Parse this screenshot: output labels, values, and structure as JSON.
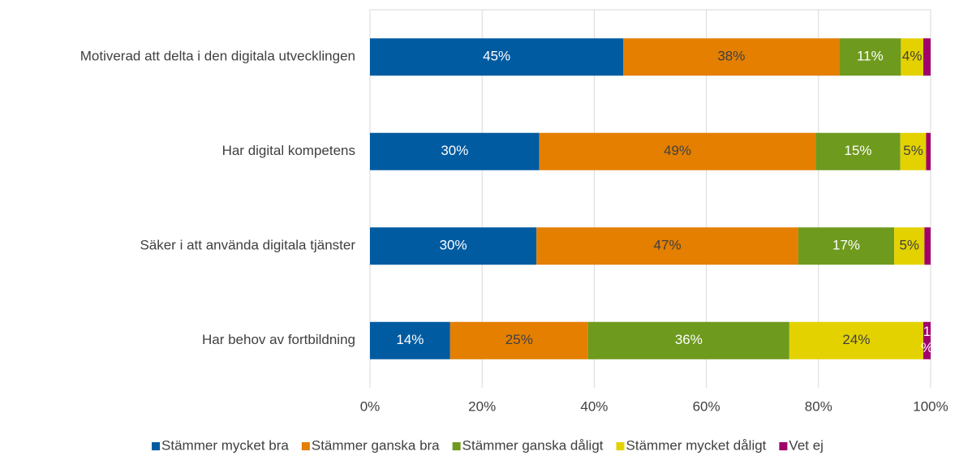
{
  "chart_data": {
    "type": "stacked_barh",
    "categories": [
      "Motiverad att delta i den digitala utvecklingen",
      "Har digital kompetens",
      "Säker i att använda digitala tjänster",
      "Har behov av fortbildning"
    ],
    "series": [
      {
        "name": "Stämmer mycket bra",
        "color": "#005ba1",
        "values": [
          45.2,
          30.2,
          29.7,
          14.3
        ],
        "value_labels": [
          "45%",
          "30%",
          "30%",
          "14%"
        ]
      },
      {
        "name": "Stämmer ganska bra",
        "color": "#e47f00",
        "values": [
          38.5,
          49.3,
          46.7,
          24.6
        ],
        "value_labels": [
          "38%",
          "49%",
          "47%",
          "25%"
        ]
      },
      {
        "name": "Stämmer ganska dåligt",
        "color": "#6e9a1e",
        "values": [
          11.0,
          15.1,
          17.1,
          35.9
        ],
        "value_labels": [
          "11%",
          "15%",
          "17%",
          "36%"
        ]
      },
      {
        "name": "Stämmer mycket dåligt",
        "color": "#e3d200",
        "values": [
          4.0,
          4.6,
          5.4,
          23.9
        ],
        "value_labels": [
          "4%",
          "5%",
          "5%",
          "24%"
        ]
      },
      {
        "name": "Vet ej",
        "color": "#a0006e",
        "values": [
          1.3,
          0.8,
          1.1,
          1.3
        ],
        "value_labels": [
          null,
          null,
          null,
          "1%"
        ]
      }
    ],
    "xlim": [
      0,
      100
    ],
    "xticks": [
      {
        "value": 0,
        "label": "0%"
      },
      {
        "value": 20,
        "label": "20%"
      },
      {
        "value": 40,
        "label": "40%"
      },
      {
        "value": 60,
        "label": "60%"
      },
      {
        "value": 80,
        "label": "80%"
      },
      {
        "value": 100,
        "label": "100%"
      }
    ],
    "grid": true,
    "legend": "bottom"
  }
}
